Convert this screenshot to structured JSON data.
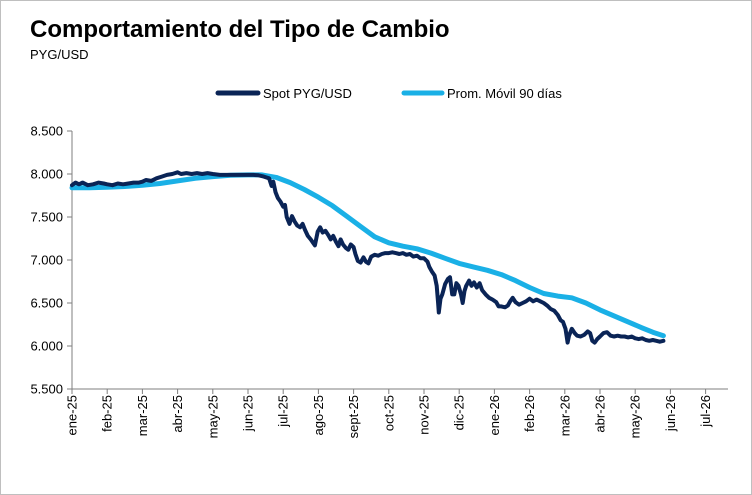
{
  "header": {
    "title": "Comportamiento  del Tipo de Cambio",
    "subtitle": "PYG/USD"
  },
  "colors": {
    "spot": "#0a2456",
    "avg": "#1ab0e6",
    "axis": "#7f7f7f"
  },
  "chart_data": {
    "type": "line",
    "title": "Comportamiento  del Tipo de Cambio",
    "subtitle": "PYG/USD",
    "xlabel": "",
    "ylabel": "",
    "ylim": [
      5500,
      8500
    ],
    "y_ticks": [
      "5.500",
      "6.000",
      "6.500",
      "7.000",
      "7.500",
      "8.000",
      "8.500"
    ],
    "y_tick_values": [
      5500,
      6000,
      6500,
      7000,
      7500,
      8000,
      8500
    ],
    "x_ticks": [
      "ene-25",
      "feb-25",
      "mar-25",
      "abr-25",
      "may-25",
      "jun-25",
      "jul-25",
      "ago-25",
      "sept-25",
      "oct-25",
      "nov-25",
      "dic-25",
      "ene-26",
      "feb-26",
      "mar-26",
      "abr-26",
      "may-26",
      "jun-26",
      "jul-26"
    ],
    "x_range_months": [
      0,
      19.4
    ],
    "legend_position": "top-center",
    "grid": false,
    "series": [
      {
        "name": "Spot PYG/USD",
        "color": "#0a2456",
        "points": [
          [
            0.0,
            7870
          ],
          [
            0.1,
            7900
          ],
          [
            0.2,
            7880
          ],
          [
            0.3,
            7900
          ],
          [
            0.45,
            7870
          ],
          [
            0.6,
            7880
          ],
          [
            0.75,
            7900
          ],
          [
            0.9,
            7890
          ],
          [
            1.0,
            7880
          ],
          [
            1.15,
            7870
          ],
          [
            1.3,
            7890
          ],
          [
            1.45,
            7880
          ],
          [
            1.6,
            7890
          ],
          [
            1.75,
            7900
          ],
          [
            1.9,
            7900
          ],
          [
            2.0,
            7910
          ],
          [
            2.1,
            7930
          ],
          [
            2.25,
            7920
          ],
          [
            2.4,
            7950
          ],
          [
            2.55,
            7970
          ],
          [
            2.7,
            7990
          ],
          [
            2.85,
            8000
          ],
          [
            3.0,
            8020
          ],
          [
            3.1,
            8000
          ],
          [
            3.25,
            8010
          ],
          [
            3.4,
            8000
          ],
          [
            3.55,
            8010
          ],
          [
            3.7,
            8000
          ],
          [
            3.85,
            8010
          ],
          [
            4.0,
            8000
          ],
          [
            4.2,
            7990
          ],
          [
            4.4,
            7990
          ],
          [
            4.6,
            7990
          ],
          [
            4.8,
            7990
          ],
          [
            5.0,
            7990
          ],
          [
            5.15,
            7990
          ],
          [
            5.3,
            7985
          ],
          [
            5.45,
            7970
          ],
          [
            5.6,
            7950
          ],
          [
            5.67,
            7860
          ],
          [
            5.72,
            7910
          ],
          [
            5.78,
            7790
          ],
          [
            5.85,
            7720
          ],
          [
            5.92,
            7680
          ],
          [
            6.0,
            7620
          ],
          [
            6.05,
            7640
          ],
          [
            6.1,
            7500
          ],
          [
            6.18,
            7420
          ],
          [
            6.25,
            7510
          ],
          [
            6.32,
            7450
          ],
          [
            6.4,
            7400
          ],
          [
            6.48,
            7380
          ],
          [
            6.55,
            7420
          ],
          [
            6.62,
            7350
          ],
          [
            6.7,
            7280
          ],
          [
            6.78,
            7240
          ],
          [
            6.85,
            7200
          ],
          [
            6.9,
            7170
          ],
          [
            6.98,
            7330
          ],
          [
            7.05,
            7380
          ],
          [
            7.12,
            7320
          ],
          [
            7.2,
            7340
          ],
          [
            7.28,
            7290
          ],
          [
            7.35,
            7240
          ],
          [
            7.42,
            7280
          ],
          [
            7.5,
            7210
          ],
          [
            7.57,
            7160
          ],
          [
            7.63,
            7240
          ],
          [
            7.7,
            7180
          ],
          [
            7.78,
            7140
          ],
          [
            7.85,
            7120
          ],
          [
            7.92,
            7180
          ],
          [
            8.0,
            7150
          ],
          [
            8.05,
            7070
          ],
          [
            8.12,
            6990
          ],
          [
            8.2,
            6970
          ],
          [
            8.28,
            7030
          ],
          [
            8.35,
            6980
          ],
          [
            8.42,
            6960
          ],
          [
            8.5,
            7040
          ],
          [
            8.6,
            7060
          ],
          [
            8.7,
            7050
          ],
          [
            8.8,
            7070
          ],
          [
            8.9,
            7080
          ],
          [
            9.0,
            7080
          ],
          [
            9.1,
            7090
          ],
          [
            9.2,
            7080
          ],
          [
            9.3,
            7070
          ],
          [
            9.4,
            7080
          ],
          [
            9.5,
            7060
          ],
          [
            9.6,
            7070
          ],
          [
            9.7,
            7040
          ],
          [
            9.8,
            7050
          ],
          [
            9.9,
            7020
          ],
          [
            10.0,
            7020
          ],
          [
            10.1,
            6980
          ],
          [
            10.15,
            6920
          ],
          [
            10.22,
            6870
          ],
          [
            10.3,
            6820
          ],
          [
            10.36,
            6700
          ],
          [
            10.4,
            6500
          ],
          [
            10.42,
            6390
          ],
          [
            10.47,
            6550
          ],
          [
            10.52,
            6600
          ],
          [
            10.6,
            6720
          ],
          [
            10.68,
            6780
          ],
          [
            10.74,
            6800
          ],
          [
            10.8,
            6600
          ],
          [
            10.86,
            6600
          ],
          [
            10.92,
            6730
          ],
          [
            10.98,
            6700
          ],
          [
            11.05,
            6600
          ],
          [
            11.1,
            6500
          ],
          [
            11.15,
            6640
          ],
          [
            11.2,
            6700
          ],
          [
            11.28,
            6760
          ],
          [
            11.35,
            6700
          ],
          [
            11.42,
            6740
          ],
          [
            11.5,
            6680
          ],
          [
            11.58,
            6730
          ],
          [
            11.65,
            6650
          ],
          [
            11.75,
            6600
          ],
          [
            11.85,
            6560
          ],
          [
            11.95,
            6540
          ],
          [
            12.05,
            6510
          ],
          [
            12.12,
            6460
          ],
          [
            12.2,
            6460
          ],
          [
            12.3,
            6450
          ],
          [
            12.38,
            6470
          ],
          [
            12.45,
            6520
          ],
          [
            12.52,
            6560
          ],
          [
            12.6,
            6510
          ],
          [
            12.7,
            6480
          ],
          [
            12.8,
            6500
          ],
          [
            12.9,
            6520
          ],
          [
            13.0,
            6550
          ],
          [
            13.1,
            6520
          ],
          [
            13.2,
            6540
          ],
          [
            13.3,
            6520
          ],
          [
            13.4,
            6500
          ],
          [
            13.5,
            6470
          ],
          [
            13.6,
            6430
          ],
          [
            13.7,
            6410
          ],
          [
            13.8,
            6360
          ],
          [
            13.88,
            6300
          ],
          [
            13.95,
            6280
          ],
          [
            14.02,
            6200
          ],
          [
            14.08,
            6040
          ],
          [
            14.12,
            6120
          ],
          [
            14.2,
            6200
          ],
          [
            14.28,
            6150
          ],
          [
            14.35,
            6120
          ],
          [
            14.45,
            6110
          ],
          [
            14.55,
            6130
          ],
          [
            14.65,
            6170
          ],
          [
            14.72,
            6150
          ],
          [
            14.78,
            6060
          ],
          [
            14.85,
            6040
          ],
          [
            14.92,
            6080
          ],
          [
            15.0,
            6110
          ],
          [
            15.1,
            6150
          ],
          [
            15.2,
            6160
          ],
          [
            15.3,
            6120
          ],
          [
            15.4,
            6110
          ],
          [
            15.5,
            6120
          ],
          [
            15.6,
            6110
          ],
          [
            15.7,
            6110
          ],
          [
            15.8,
            6100
          ],
          [
            15.9,
            6110
          ],
          [
            16.0,
            6090
          ],
          [
            16.1,
            6080
          ],
          [
            16.2,
            6090
          ],
          [
            16.3,
            6070
          ],
          [
            16.4,
            6060
          ],
          [
            16.5,
            6070
          ],
          [
            16.6,
            6060
          ],
          [
            16.7,
            6050
          ],
          [
            16.8,
            6060
          ]
        ]
      },
      {
        "name": "Prom. Móvil 90 días",
        "color": "#1ab0e6",
        "points": [
          [
            0.0,
            7840
          ],
          [
            0.5,
            7840
          ],
          [
            1.0,
            7845
          ],
          [
            1.5,
            7855
          ],
          [
            2.0,
            7870
          ],
          [
            2.5,
            7890
          ],
          [
            3.0,
            7920
          ],
          [
            3.5,
            7950
          ],
          [
            4.0,
            7970
          ],
          [
            4.5,
            7985
          ],
          [
            5.0,
            7990
          ],
          [
            5.4,
            7990
          ],
          [
            5.8,
            7960
          ],
          [
            6.2,
            7900
          ],
          [
            6.6,
            7820
          ],
          [
            7.0,
            7730
          ],
          [
            7.4,
            7630
          ],
          [
            7.8,
            7510
          ],
          [
            8.2,
            7390
          ],
          [
            8.6,
            7270
          ],
          [
            9.0,
            7200
          ],
          [
            9.4,
            7160
          ],
          [
            9.8,
            7130
          ],
          [
            10.2,
            7080
          ],
          [
            10.6,
            7020
          ],
          [
            11.0,
            6960
          ],
          [
            11.4,
            6920
          ],
          [
            11.8,
            6880
          ],
          [
            12.2,
            6830
          ],
          [
            12.6,
            6760
          ],
          [
            13.0,
            6680
          ],
          [
            13.4,
            6610
          ],
          [
            13.8,
            6580
          ],
          [
            14.2,
            6560
          ],
          [
            14.6,
            6500
          ],
          [
            15.0,
            6420
          ],
          [
            15.4,
            6350
          ],
          [
            15.8,
            6280
          ],
          [
            16.2,
            6210
          ],
          [
            16.5,
            6160
          ],
          [
            16.8,
            6120
          ]
        ]
      }
    ]
  }
}
